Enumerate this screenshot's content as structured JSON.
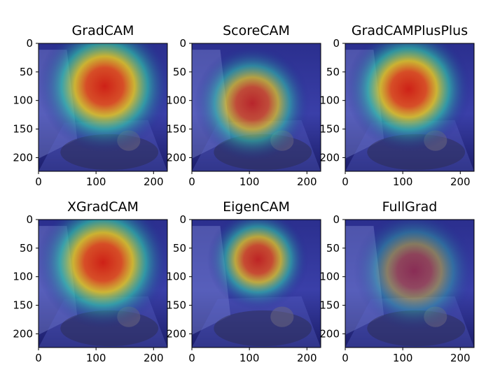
{
  "figure": {
    "description": "grid of 2x3 class-activation-map heatmap panels"
  },
  "colors": {
    "axis": "#000000",
    "cam_hot": "#d62010",
    "cam_warm": "#f2d21a",
    "cam_mid": "#2ec8a8",
    "cam_cold": "#1a1f8a",
    "photo_dark": "#2a2a4a"
  },
  "chart_data": [
    {
      "type": "heatmap",
      "title": "GradCAM",
      "xlim": [
        0,
        224
      ],
      "ylim": [
        224,
        0
      ],
      "xticks": [
        "0",
        "100",
        "200"
      ],
      "yticks": [
        "0",
        "50",
        "100",
        "150",
        "200"
      ],
      "hotspot": {
        "x": 115,
        "y": 75,
        "radius": 55,
        "intensity": 1.0
      }
    },
    {
      "type": "heatmap",
      "title": "ScoreCAM",
      "xlim": [
        0,
        224
      ],
      "ylim": [
        224,
        0
      ],
      "xticks": [
        "0",
        "100",
        "200"
      ],
      "yticks": [
        "0",
        "50",
        "100",
        "150",
        "200"
      ],
      "hotspot": {
        "x": 105,
        "y": 105,
        "radius": 48,
        "intensity": 0.85
      }
    },
    {
      "type": "heatmap",
      "title": "GradCAMPlusPlus",
      "xlim": [
        0,
        224
      ],
      "ylim": [
        224,
        0
      ],
      "xticks": [
        "0",
        "100",
        "200"
      ],
      "yticks": [
        "0",
        "50",
        "100",
        "150",
        "200"
      ],
      "hotspot": {
        "x": 110,
        "y": 80,
        "radius": 52,
        "intensity": 1.0
      }
    },
    {
      "type": "heatmap",
      "title": "XGradCAM",
      "xlim": [
        0,
        224
      ],
      "ylim": [
        224,
        0
      ],
      "xticks": [
        "0",
        "100",
        "200"
      ],
      "yticks": [
        "0",
        "50",
        "100",
        "150",
        "200"
      ],
      "hotspot": {
        "x": 112,
        "y": 75,
        "radius": 55,
        "intensity": 1.0
      }
    },
    {
      "type": "heatmap",
      "title": "EigenCAM",
      "xlim": [
        0,
        224
      ],
      "ylim": [
        224,
        0
      ],
      "xticks": [
        "0",
        "100",
        "200"
      ],
      "yticks": [
        "0",
        "50",
        "100",
        "150",
        "200"
      ],
      "hotspot": {
        "x": 115,
        "y": 70,
        "radius": 42,
        "intensity": 0.9
      }
    },
    {
      "type": "heatmap",
      "title": "FullGrad",
      "xlim": [
        0,
        224
      ],
      "ylim": [
        224,
        0
      ],
      "xticks": [
        "0",
        "100",
        "200"
      ],
      "yticks": [
        "0",
        "50",
        "100",
        "150",
        "200"
      ],
      "hotspot": {
        "x": 120,
        "y": 90,
        "radius": 50,
        "intensity": 0.55
      }
    }
  ]
}
